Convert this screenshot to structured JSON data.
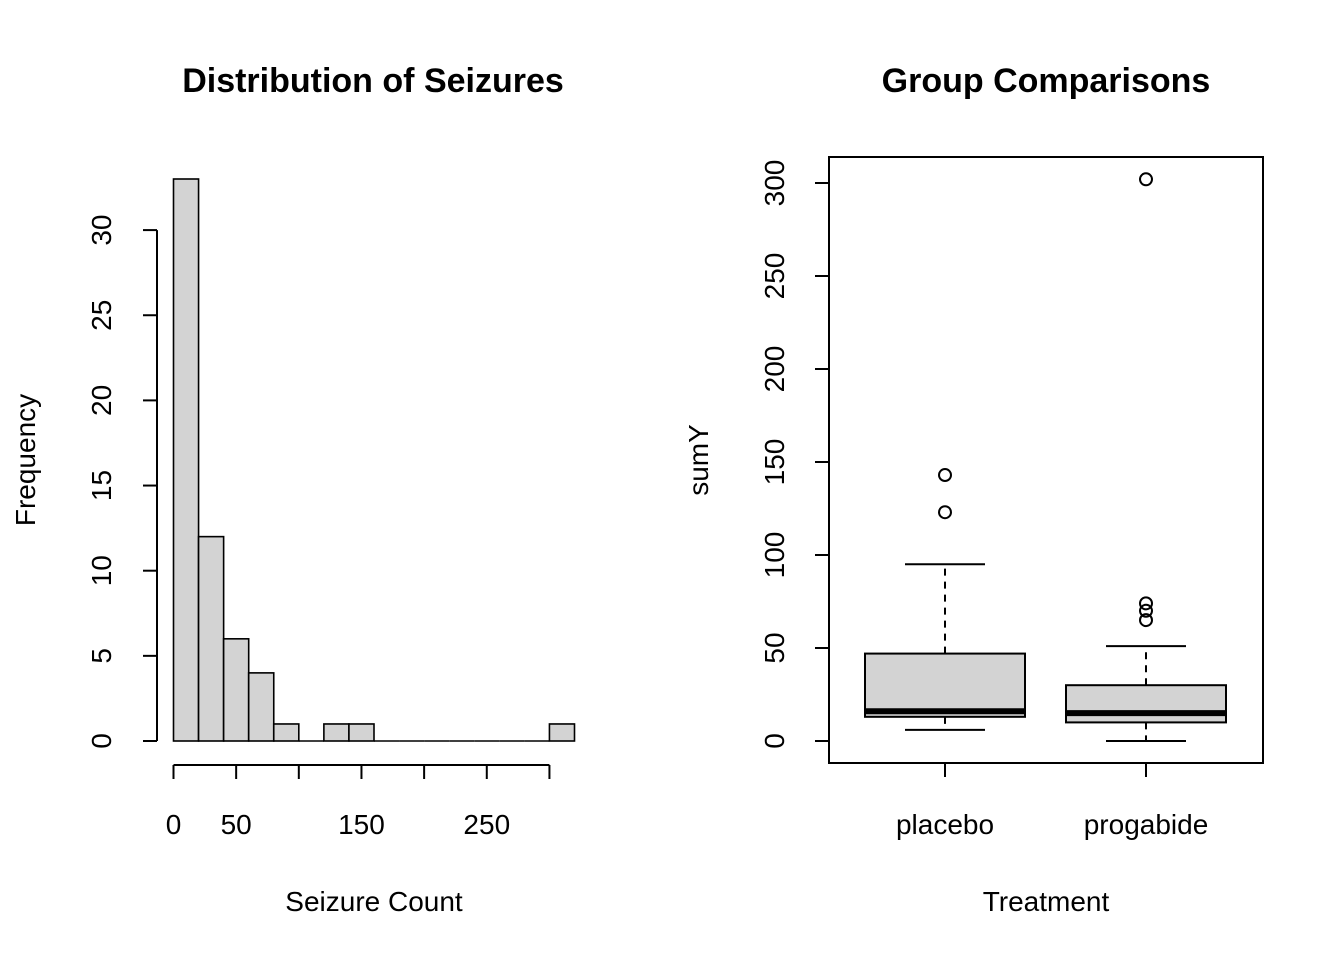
{
  "chart_data": [
    {
      "type": "bar",
      "title": "Distribution of Seizures",
      "xlabel": "Seizure Count",
      "ylabel": "Frequency",
      "bins": [
        {
          "start": 0,
          "end": 20,
          "count": 33
        },
        {
          "start": 20,
          "end": 40,
          "count": 12
        },
        {
          "start": 40,
          "end": 60,
          "count": 6
        },
        {
          "start": 60,
          "end": 80,
          "count": 4
        },
        {
          "start": 80,
          "end": 100,
          "count": 1
        },
        {
          "start": 100,
          "end": 120,
          "count": 0
        },
        {
          "start": 120,
          "end": 140,
          "count": 1
        },
        {
          "start": 140,
          "end": 160,
          "count": 1
        },
        {
          "start": 160,
          "end": 180,
          "count": 0
        },
        {
          "start": 180,
          "end": 200,
          "count": 0
        },
        {
          "start": 200,
          "end": 220,
          "count": 0
        },
        {
          "start": 220,
          "end": 240,
          "count": 0
        },
        {
          "start": 240,
          "end": 260,
          "count": 0
        },
        {
          "start": 260,
          "end": 280,
          "count": 0
        },
        {
          "start": 280,
          "end": 300,
          "count": 0
        },
        {
          "start": 300,
          "end": 320,
          "count": 1
        }
      ],
      "xlim": [
        0,
        320
      ],
      "ylim": [
        0,
        33
      ],
      "x_ticks": [
        0,
        50,
        100,
        150,
        200,
        250,
        300
      ],
      "x_tick_labels": [
        "0",
        "50",
        "",
        "150",
        "",
        "250",
        ""
      ],
      "y_ticks": [
        0,
        5,
        10,
        15,
        20,
        25,
        30
      ],
      "y_tick_labels": [
        "0",
        "5",
        "10",
        "15",
        "20",
        "25",
        "30"
      ],
      "bar_color": "#d3d3d3",
      "grid": false
    },
    {
      "type": "box",
      "title": "Group Comparisons",
      "xlabel": "Treatment",
      "ylabel": "sumY",
      "categories": [
        "placebo",
        "progabide"
      ],
      "boxes": [
        {
          "category": "placebo",
          "whisker_low": 6,
          "q1": 13,
          "median": 16,
          "q3": 47,
          "whisker_high": 95,
          "outliers": [
            123,
            143
          ]
        },
        {
          "category": "progabide",
          "whisker_low": 0,
          "q1": 10,
          "median": 15,
          "q3": 30,
          "whisker_high": 51,
          "outliers": [
            65,
            70,
            74,
            302
          ]
        }
      ],
      "ylim": [
        -12,
        314
      ],
      "y_ticks": [
        0,
        50,
        100,
        150,
        200,
        250,
        300
      ],
      "y_tick_labels": [
        "0",
        "50",
        "100",
        "150",
        "200",
        "250",
        "300"
      ],
      "box_color": "#d3d3d3",
      "grid": false
    }
  ]
}
